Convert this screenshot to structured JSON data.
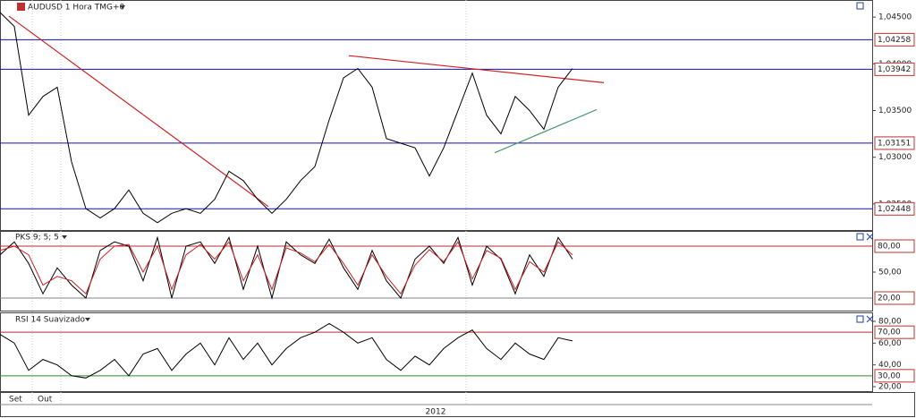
{
  "chart_data": [
    {
      "type": "line",
      "title": "AUDUSD 1 Hora TMG+0",
      "x": [
        0,
        4,
        8,
        12,
        16,
        20,
        24,
        28,
        32,
        36,
        40,
        44,
        48,
        52,
        56,
        60,
        64,
        68,
        72,
        76,
        80,
        84,
        88,
        92,
        96,
        100,
        104,
        108,
        112,
        116,
        120,
        124,
        128,
        132,
        136,
        140,
        144,
        148,
        152,
        156,
        160
      ],
      "series": [
        {
          "color": "#000000",
          "values": [
            1.0455,
            1.044,
            1.0345,
            1.0365,
            1.0375,
            1.0295,
            1.0245,
            1.0235,
            1.0245,
            1.0265,
            1.024,
            1.023,
            1.024,
            1.0245,
            1.024,
            1.0255,
            1.0285,
            1.0275,
            1.0255,
            1.024,
            1.0255,
            1.0275,
            1.029,
            1.034,
            1.0385,
            1.0395,
            1.0375,
            1.032,
            1.0315,
            1.031,
            1.028,
            1.031,
            1.035,
            1.039,
            1.0345,
            1.0325,
            1.0365,
            1.035,
            1.033,
            1.0375,
            1.0395
          ]
        }
      ],
      "ylim": [
        1.02221,
        1.04683
      ],
      "yticks": [
        {
          "value": 1.045,
          "label": "1,04500"
        },
        {
          "value": 1.04,
          "label": "1,04000"
        },
        {
          "value": 1.035,
          "label": "1,03500"
        },
        {
          "value": 1.03,
          "label": "1,03000"
        },
        {
          "value": 1.025,
          "label": "1,02500"
        }
      ],
      "levels": [
        {
          "value": 1.04258,
          "label": "1,04258",
          "color": "#1010b0"
        },
        {
          "value": 1.03942,
          "label": "1,03942",
          "color": "#1010b0"
        },
        {
          "value": 1.03151,
          "label": "1,03151",
          "color": "#1010b0"
        },
        {
          "value": 1.02448,
          "label": "1,02448",
          "color": "#1010b0"
        }
      ],
      "trendlines": [
        {
          "x": [
            2.5,
            75
          ],
          "y": [
            1.0451,
            1.02472
          ],
          "color": "#d02020"
        },
        {
          "x": [
            97.5,
            168.75
          ],
          "y": [
            1.04087,
            1.03798
          ],
          "color": "#d02020"
        },
        {
          "x": [
            138.25,
            166.75
          ],
          "y": [
            1.03048,
            1.0351
          ],
          "color": "#4a9a70"
        }
      ]
    },
    {
      "type": "line",
      "title": "PKS 9; 5; 5",
      "x": [
        0,
        4,
        8,
        12,
        16,
        20,
        24,
        28,
        32,
        36,
        40,
        44,
        48,
        52,
        56,
        60,
        64,
        68,
        72,
        76,
        80,
        84,
        88,
        92,
        96,
        100,
        104,
        108,
        112,
        116,
        120,
        124,
        128,
        132,
        136,
        140,
        144,
        148,
        152,
        156,
        160
      ],
      "series": [
        {
          "color": "#000000",
          "values": [
            70,
            85,
            60,
            25,
            55,
            35,
            20,
            75,
            85,
            80,
            40,
            90,
            20,
            80,
            85,
            60,
            90,
            30,
            80,
            20,
            85,
            70,
            60,
            88,
            55,
            30,
            75,
            40,
            20,
            65,
            80,
            60,
            90,
            35,
            80,
            65,
            25,
            70,
            45,
            90,
            65
          ]
        },
        {
          "color": "#d02020",
          "values": [
            75,
            80,
            70,
            35,
            45,
            40,
            25,
            65,
            80,
            82,
            50,
            80,
            30,
            70,
            82,
            65,
            85,
            40,
            70,
            30,
            78,
            72,
            62,
            82,
            60,
            35,
            70,
            45,
            25,
            58,
            76,
            62,
            85,
            42,
            75,
            66,
            30,
            62,
            50,
            85,
            70
          ]
        }
      ],
      "ylim": [
        5.5,
        97.6
      ],
      "yticks": [
        {
          "value": 50,
          "label": "50,00"
        }
      ],
      "levels": [
        {
          "value": 80,
          "label": "80,00",
          "color": "#b03030"
        },
        {
          "value": 20,
          "label": "20,00",
          "color": "#808080"
        }
      ]
    },
    {
      "type": "line",
      "title": "RSI 14 Suavizado",
      "x": [
        0,
        4,
        8,
        12,
        16,
        20,
        24,
        28,
        32,
        36,
        40,
        44,
        48,
        52,
        56,
        60,
        64,
        68,
        72,
        76,
        80,
        84,
        88,
        92,
        96,
        100,
        104,
        108,
        112,
        116,
        120,
        124,
        128,
        132,
        136,
        140,
        144,
        148,
        152,
        156,
        160
      ],
      "series": [
        {
          "color": "#000000",
          "values": [
            68,
            60,
            35,
            45,
            40,
            30,
            28,
            35,
            45,
            30,
            50,
            55,
            35,
            50,
            60,
            40,
            65,
            45,
            60,
            40,
            55,
            65,
            70,
            78,
            70,
            60,
            65,
            45,
            35,
            48,
            40,
            55,
            65,
            72,
            55,
            45,
            60,
            50,
            45,
            65,
            62
          ]
        }
      ],
      "ylim": [
        15.9,
        87.4
      ],
      "yticks": [
        {
          "value": 80,
          "label": "80,00"
        },
        {
          "value": 60,
          "label": "60,00"
        },
        {
          "value": 40,
          "label": "40,00"
        },
        {
          "value": 20,
          "label": "20,00"
        }
      ],
      "levels": [
        {
          "value": 70,
          "label": "70,00",
          "color": "#b03030"
        },
        {
          "value": 30,
          "label": "30,00",
          "color": "#2a8a2a"
        }
      ],
      "xlim": [
        0,
        243.75
      ],
      "xticks": [
        {
          "value": 0.5,
          "label": "Set"
        },
        {
          "value": 8.5,
          "label": "Out"
        },
        {
          "value": 121.75,
          "label": "2012"
        }
      ]
    }
  ]
}
